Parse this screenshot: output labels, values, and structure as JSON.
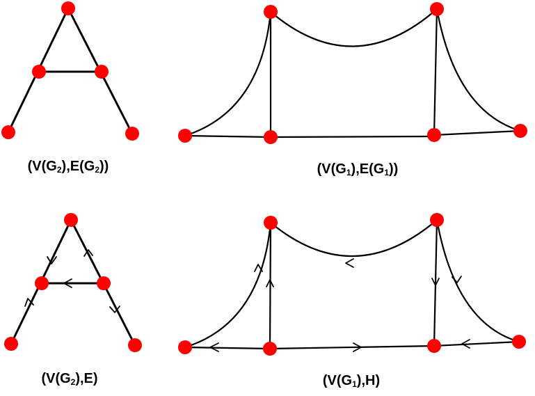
{
  "diagram": {
    "node_color": "#ff0000",
    "edge_color": "#000000",
    "panels": [
      {
        "id": "top-left",
        "caption_parts": [
          "(V(G",
          "2",
          "),E(G",
          "2",
          "))"
        ]
      },
      {
        "id": "top-right",
        "caption_parts": [
          "(V(G",
          "1",
          "),E(G",
          "1",
          "))"
        ]
      },
      {
        "id": "bottom-left",
        "caption_parts": [
          "(V(G",
          "2",
          "),E)"
        ]
      },
      {
        "id": "bottom-right",
        "caption_parts": [
          "(V(G",
          "1",
          "),H)"
        ]
      }
    ]
  }
}
